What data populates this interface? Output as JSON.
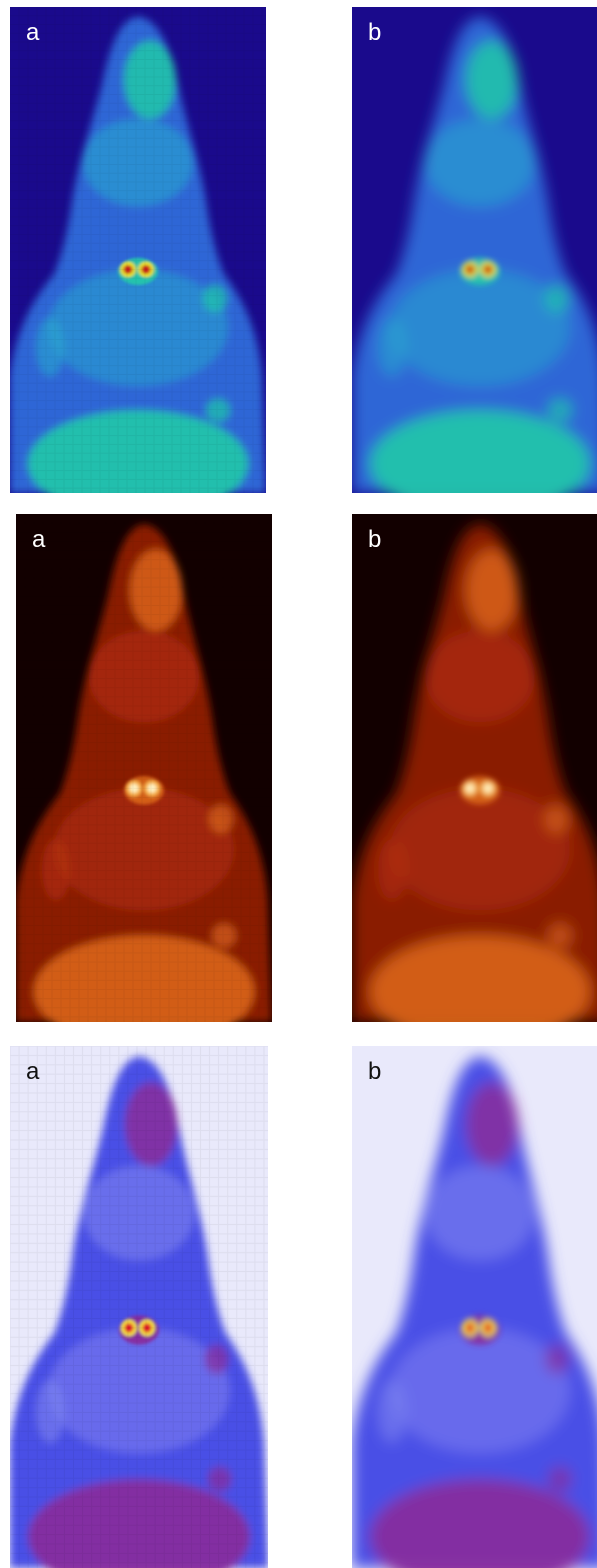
{
  "panels": [
    {
      "id": "jet-a",
      "label": "a",
      "colormap": "jet",
      "style": "pixelated",
      "bg": "#1a0a8c",
      "body": "#2e66d6",
      "mid": "#2aa6cf",
      "hi": "#21c9a8",
      "peak": "#c81e1e",
      "hot2": "#e6df2a",
      "label_color": "#ffffff"
    },
    {
      "id": "jet-b",
      "label": "b",
      "colormap": "jet",
      "style": "smoothed",
      "bg": "#1a0a8c",
      "body": "#2e66d6",
      "mid": "#2aa6cf",
      "hi": "#21c9a8",
      "peak": "#c81e1e",
      "hot2": "#e6df2a",
      "label_color": "#ffffff"
    },
    {
      "id": "hot-a",
      "label": "a",
      "colormap": "hot",
      "style": "pixelated",
      "bg": "#120000",
      "body": "#8a1a05",
      "mid": "#b5320c",
      "hi": "#d9651a",
      "peak": "#fff0c0",
      "hot2": "#f6b04a",
      "label_color": "#ffffff"
    },
    {
      "id": "hot-b",
      "label": "b",
      "colormap": "hot",
      "style": "smoothed",
      "bg": "#120000",
      "body": "#8a1a05",
      "mid": "#b5320c",
      "hi": "#d9651a",
      "peak": "#fff0c0",
      "hot2": "#f6b04a",
      "label_color": "#ffffff"
    },
    {
      "id": "blue-a",
      "label": "a",
      "colormap": "blue-red-inverse",
      "style": "pixelated",
      "bg": "#e9e9fb",
      "body": "#4a4fe6",
      "mid": "#7f84f0",
      "hi": "#8a2a9a",
      "peak": "#e0102a",
      "hot2": "#f5e23a",
      "label_color": "#111111"
    },
    {
      "id": "blue-b",
      "label": "b",
      "colormap": "blue-red-inverse",
      "style": "smoothed",
      "bg": "#e9e9fb",
      "body": "#4a4fe6",
      "mid": "#7f84f0",
      "hi": "#8a2a9a",
      "peak": "#e0102a",
      "hot2": "#f5e23a",
      "label_color": "#111111"
    }
  ]
}
